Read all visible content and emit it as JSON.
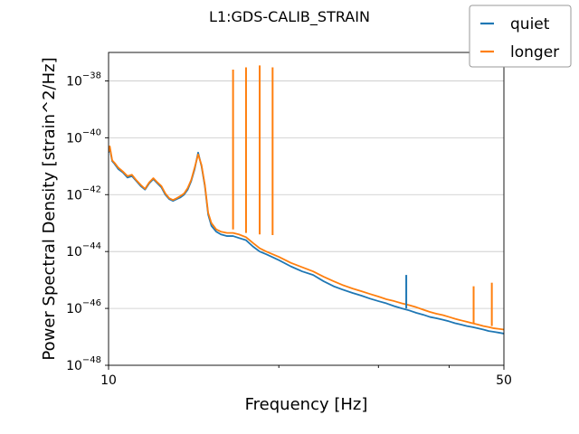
{
  "chart_data": {
    "type": "line",
    "title": "L1:GDS-CALIB_STRAIN",
    "xlabel": "Frequency [Hz]",
    "ylabel": "Power Spectral Density [strain^2/Hz]",
    "x_scale": "log",
    "y_scale": "log",
    "xlim": [
      10,
      50
    ],
    "ylim": [
      1e-48,
      1e-37
    ],
    "grid": true,
    "legend_position": "top-right",
    "x_ticks": [
      {
        "value": 10,
        "label": "10"
      },
      {
        "value": 50,
        "label": "50"
      }
    ],
    "y_ticks": [
      {
        "value": -48,
        "mantissa": "10",
        "exp": "−48"
      },
      {
        "value": -46,
        "mantissa": "10",
        "exp": "−46"
      },
      {
        "value": -44,
        "mantissa": "10",
        "exp": "−44"
      },
      {
        "value": -42,
        "mantissa": "10",
        "exp": "−42"
      },
      {
        "value": -40,
        "mantissa": "10",
        "exp": "−40"
      },
      {
        "value": -38,
        "mantissa": "10",
        "exp": "−38"
      }
    ],
    "x_minor_ticks": [
      20,
      30,
      40
    ],
    "series": [
      {
        "name": "quiet",
        "color": "#1f77b4",
        "x": [
          10.0,
          10.05,
          10.1,
          10.15,
          10.25,
          10.4,
          10.6,
          10.8,
          11.0,
          11.2,
          11.4,
          11.6,
          11.8,
          12.0,
          12.2,
          12.4,
          12.6,
          12.8,
          13.0,
          13.2,
          13.4,
          13.6,
          13.8,
          14.0,
          14.2,
          14.4,
          14.6,
          14.8,
          15.0,
          15.2,
          15.5,
          15.8,
          16.2,
          16.6,
          17.0,
          17.5,
          18.0,
          18.5,
          19.0,
          20.0,
          21.0,
          22.0,
          23.0,
          24.0,
          25.0,
          26.0,
          27.0,
          28.0,
          29.0,
          30.0,
          31.0,
          32.0,
          33.0,
          34.0,
          35.0,
          36.0,
          37.0,
          38.0,
          39.0,
          40.0,
          41.0,
          42.0,
          43.0,
          44.0,
          45.0,
          46.0,
          47.0,
          48.0,
          49.0,
          50.0
        ],
        "y": [
          3e-41,
          4.5e-41,
          2.5e-41,
          1.5e-41,
          1.2e-41,
          8e-42,
          6e-42,
          4e-42,
          4.5e-42,
          3e-42,
          2e-42,
          1.5e-42,
          2.5e-42,
          3.5e-42,
          2.5e-42,
          1.8e-42,
          1e-42,
          7e-43,
          6e-43,
          7e-43,
          8e-43,
          1e-42,
          1.5e-42,
          3e-42,
          8e-42,
          3e-41,
          1e-41,
          2e-42,
          2e-43,
          8e-44,
          5e-44,
          4e-44,
          3.5e-44,
          3.5e-44,
          3e-44,
          2.5e-44,
          1.5e-44,
          1e-44,
          8e-45,
          5e-45,
          3e-45,
          2e-45,
          1.5e-45,
          9e-46,
          6e-46,
          4.5e-46,
          3.5e-46,
          2.8e-46,
          2.2e-46,
          1.8e-46,
          1.5e-46,
          1.2e-46,
          1e-46,
          8.5e-47,
          7e-47,
          6e-47,
          5e-47,
          4.5e-47,
          4e-47,
          3.5e-47,
          3e-47,
          2.7e-47,
          2.4e-47,
          2.2e-47,
          2e-47,
          1.8e-47,
          1.6e-47,
          1.5e-47,
          1.4e-47,
          1.3e-47
        ]
      },
      {
        "name": "longer",
        "color": "#ff7f0e",
        "x": [
          10.0,
          10.05,
          10.1,
          10.15,
          10.25,
          10.4,
          10.6,
          10.8,
          11.0,
          11.2,
          11.4,
          11.6,
          11.8,
          12.0,
          12.2,
          12.4,
          12.6,
          12.8,
          13.0,
          13.2,
          13.4,
          13.6,
          13.8,
          14.0,
          14.2,
          14.4,
          14.6,
          14.8,
          15.0,
          15.2,
          15.5,
          15.8,
          16.2,
          16.6,
          17.0,
          17.5,
          18.0,
          18.5,
          19.0,
          20.0,
          21.0,
          22.0,
          23.0,
          24.0,
          25.0,
          26.0,
          27.0,
          28.0,
          29.0,
          30.0,
          31.0,
          32.0,
          33.0,
          34.0,
          35.0,
          36.0,
          37.0,
          38.0,
          39.0,
          40.0,
          41.0,
          42.0,
          43.0,
          44.0,
          45.0,
          46.0,
          47.0,
          48.0,
          49.0,
          50.0
        ],
        "y": [
          3.2e-41,
          5e-41,
          2.8e-41,
          1.6e-41,
          1.3e-41,
          9e-42,
          6.5e-42,
          4.5e-42,
          5e-42,
          3.2e-42,
          2.2e-42,
          1.6e-42,
          2.7e-42,
          3.8e-42,
          2.7e-42,
          2e-42,
          1.1e-42,
          7.5e-43,
          6.5e-43,
          7.5e-43,
          9e-43,
          1.1e-42,
          1.7e-42,
          3.3e-42,
          9e-42,
          2.6e-41,
          1.1e-41,
          2.2e-42,
          2.3e-43,
          1e-43,
          6e-44,
          5e-44,
          4.5e-44,
          4.5e-44,
          4e-44,
          3.2e-44,
          2e-44,
          1.3e-44,
          1e-44,
          6.5e-45,
          4e-45,
          2.8e-45,
          2e-45,
          1.3e-45,
          9e-46,
          6.5e-46,
          5e-46,
          4e-46,
          3.2e-46,
          2.6e-46,
          2.1e-46,
          1.8e-46,
          1.5e-46,
          1.3e-46,
          1.1e-46,
          9e-47,
          7.5e-47,
          6.5e-47,
          5.8e-47,
          5e-47,
          4.3e-47,
          3.8e-47,
          3.4e-47,
          3e-47,
          2.7e-47,
          2.4e-47,
          2.2e-47,
          2e-47,
          1.9e-47,
          1.8e-47
        ]
      }
    ],
    "spikes": [
      {
        "series": "longer",
        "x": 16.6,
        "peak": 2.5e-38,
        "base": 6e-44
      },
      {
        "series": "longer",
        "x": 17.5,
        "peak": 3e-38,
        "base": 4.5e-44
      },
      {
        "series": "longer",
        "x": 18.5,
        "peak": 3.5e-38,
        "base": 4e-44
      },
      {
        "series": "longer",
        "x": 19.5,
        "peak": 3e-38,
        "base": 3.8e-44
      },
      {
        "series": "quiet",
        "x": 33.6,
        "peak": 1.5e-45,
        "base": 1e-46
      },
      {
        "series": "longer",
        "x": 44.2,
        "peak": 6e-46,
        "base": 3e-47
      },
      {
        "series": "longer",
        "x": 47.6,
        "peak": 8e-46,
        "base": 2.4e-47
      }
    ]
  }
}
